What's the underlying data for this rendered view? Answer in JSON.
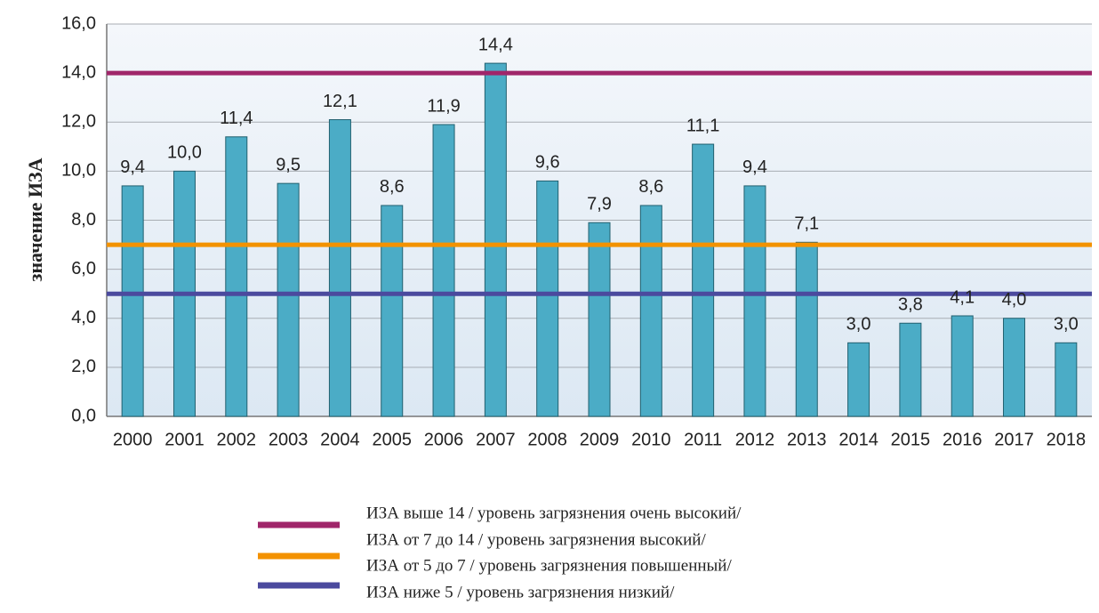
{
  "chart_data": {
    "type": "bar",
    "y_label": "значение ИЗА",
    "categories": [
      "2000",
      "2001",
      "2002",
      "2003",
      "2004",
      "2005",
      "2006",
      "2007",
      "2008",
      "2009",
      "2010",
      "2011",
      "2012",
      "2013",
      "2014",
      "2015",
      "2016",
      "2017",
      "2018"
    ],
    "values": [
      9.4,
      10.0,
      11.4,
      9.5,
      12.1,
      8.6,
      11.9,
      14.4,
      9.6,
      7.9,
      8.6,
      11.1,
      9.4,
      7.1,
      3.0,
      3.8,
      4.1,
      4.0,
      3.0
    ],
    "value_labels": [
      "9,4",
      "10,0",
      "11,4",
      "9,5",
      "12,1",
      "8,6",
      "11,9",
      "14,4",
      "9,6",
      "7,9",
      "8,6",
      "11,1",
      "9,4",
      "7,1",
      "3,0",
      "3,8",
      "4,1",
      "4,0",
      "3,0"
    ],
    "color": "#4bacc6",
    "ylim": [
      0,
      16
    ],
    "yticks": [
      {
        "value": 0,
        "label": "0,0"
      },
      {
        "value": 2,
        "label": "2,0"
      },
      {
        "value": 4,
        "label": "4,0"
      },
      {
        "value": 6,
        "label": "6,0"
      },
      {
        "value": 8,
        "label": "8,0"
      },
      {
        "value": 10,
        "label": "10,0"
      },
      {
        "value": 12,
        "label": "12,0"
      },
      {
        "value": 14,
        "label": "14,0"
      },
      {
        "value": 16,
        "label": "16,0"
      }
    ],
    "grid": true,
    "reference_lines": [
      {
        "value": 14,
        "color": "#a0266a"
      },
      {
        "value": 7,
        "color": "#f39200"
      },
      {
        "value": 5,
        "color": "#4b4a9e"
      }
    ],
    "legend": [
      "ИЗА выше 14 / уровень загрязнения очень высокий/",
      "ИЗА от 7 до 14 / уровень загрязнения высокий/",
      "ИЗА от 5 до 7 / уровень загрязнения повышенный/",
      "ИЗА ниже 5 / уровень загрязнения низкий/"
    ]
  }
}
